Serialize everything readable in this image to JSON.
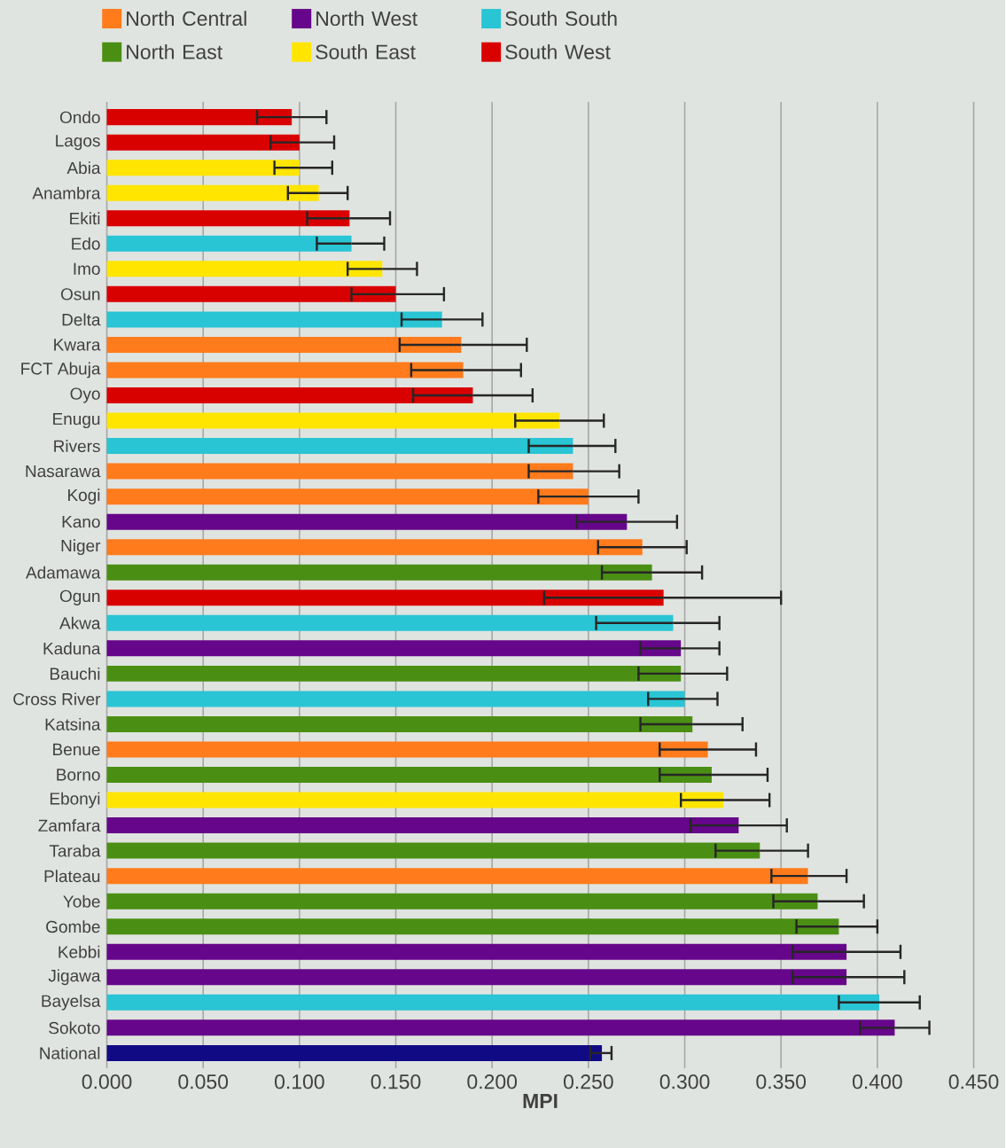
{
  "chart_data": {
    "type": "bar",
    "orientation": "horizontal",
    "stacked": true,
    "categories": [
      "Ondo",
      "Lagos",
      "Abia",
      "Anambra",
      "Ekiti",
      "Edo",
      "Imo",
      "Osun",
      "Delta",
      "Kwara",
      "FCT Abuja",
      "Oyo",
      "Enugu",
      "Rivers",
      "Nasarawa",
      "Kogi",
      "Kano",
      "Niger",
      "Adamawa",
      "Ogun",
      "Akwa",
      "Kaduna",
      "Bauchi",
      "Cross River",
      "Katsina",
      "Benue",
      "Borno",
      "Ebonyi",
      "Zamfara",
      "Taraba",
      "Plateau",
      "Yobe",
      "Gombe",
      "Kebbi",
      "Jigawa",
      "Bayelsa",
      "Sokoto",
      "National"
    ],
    "series": [
      {
        "name": "North Central",
        "color": "#ff7b1c",
        "values": [
          null,
          null,
          null,
          null,
          null,
          null,
          null,
          null,
          null,
          0.184,
          0.185,
          null,
          null,
          null,
          0.242,
          0.25,
          null,
          0.278,
          null,
          null,
          null,
          null,
          null,
          null,
          null,
          0.312,
          null,
          null,
          null,
          null,
          0.364,
          null,
          null,
          null,
          null,
          null,
          null,
          null
        ],
        "errors": [
          null,
          null,
          null,
          null,
          null,
          null,
          null,
          null,
          null,
          [
            0.152,
            0.218
          ],
          [
            0.158,
            0.215
          ],
          null,
          null,
          null,
          [
            0.219,
            0.266
          ],
          [
            0.224,
            0.276
          ],
          null,
          [
            0.255,
            0.301
          ],
          null,
          null,
          null,
          null,
          null,
          null,
          null,
          [
            0.287,
            0.337
          ],
          null,
          null,
          null,
          null,
          [
            0.345,
            0.384
          ],
          null,
          null,
          null,
          null,
          null,
          null,
          null
        ]
      },
      {
        "name": "North West",
        "color": "#66068a",
        "values": [
          null,
          null,
          null,
          null,
          null,
          null,
          null,
          null,
          null,
          null,
          null,
          null,
          null,
          null,
          null,
          null,
          0.27,
          null,
          null,
          null,
          null,
          0.298,
          null,
          null,
          null,
          null,
          null,
          null,
          0.328,
          null,
          null,
          null,
          null,
          0.384,
          0.384,
          null,
          0.409,
          null
        ],
        "errors": [
          null,
          null,
          null,
          null,
          null,
          null,
          null,
          null,
          null,
          null,
          null,
          null,
          null,
          null,
          null,
          null,
          [
            0.244,
            0.296
          ],
          null,
          null,
          null,
          null,
          [
            0.277,
            0.318
          ],
          null,
          null,
          null,
          null,
          null,
          null,
          [
            0.303,
            0.353
          ],
          null,
          null,
          null,
          null,
          [
            0.356,
            0.412
          ],
          [
            0.356,
            0.414
          ],
          null,
          [
            0.391,
            0.427
          ],
          null
        ]
      },
      {
        "name": "South South",
        "color": "#29c5d4",
        "values": [
          null,
          null,
          null,
          null,
          null,
          0.127,
          null,
          null,
          0.174,
          null,
          null,
          null,
          null,
          0.242,
          null,
          null,
          null,
          null,
          null,
          null,
          0.294,
          null,
          null,
          0.3,
          null,
          null,
          null,
          null,
          null,
          null,
          null,
          null,
          null,
          null,
          null,
          0.401,
          null,
          null
        ],
        "errors": [
          null,
          null,
          null,
          null,
          null,
          [
            0.109,
            0.144
          ],
          null,
          null,
          [
            0.153,
            0.195
          ],
          null,
          null,
          null,
          null,
          [
            0.219,
            0.264
          ],
          null,
          null,
          null,
          null,
          null,
          null,
          [
            0.254,
            0.318
          ],
          null,
          null,
          [
            0.281,
            0.317
          ],
          null,
          null,
          null,
          null,
          null,
          null,
          null,
          null,
          null,
          null,
          null,
          [
            0.38,
            0.422
          ],
          null,
          null
        ]
      },
      {
        "name": "North East",
        "color": "#4a8f14",
        "values": [
          null,
          null,
          null,
          null,
          null,
          null,
          null,
          null,
          null,
          null,
          null,
          null,
          null,
          null,
          null,
          null,
          null,
          null,
          0.283,
          null,
          null,
          null,
          0.298,
          null,
          0.304,
          null,
          0.314,
          null,
          null,
          0.339,
          null,
          0.369,
          0.38,
          null,
          null,
          null,
          null,
          null
        ],
        "errors": [
          null,
          null,
          null,
          null,
          null,
          null,
          null,
          null,
          null,
          null,
          null,
          null,
          null,
          null,
          null,
          null,
          null,
          null,
          [
            0.257,
            0.309
          ],
          null,
          null,
          null,
          [
            0.276,
            0.322
          ],
          null,
          [
            0.277,
            0.33
          ],
          null,
          [
            0.287,
            0.343
          ],
          null,
          null,
          [
            0.316,
            0.364
          ],
          null,
          [
            0.346,
            0.393
          ],
          [
            0.358,
            0.4
          ],
          null,
          null,
          null,
          null,
          null
        ]
      },
      {
        "name": "South East",
        "color": "#ffe500",
        "values": [
          null,
          null,
          0.1,
          0.11,
          null,
          null,
          0.143,
          null,
          null,
          null,
          null,
          null,
          0.235,
          null,
          null,
          null,
          null,
          null,
          null,
          null,
          null,
          null,
          null,
          null,
          null,
          null,
          null,
          0.32,
          null,
          null,
          null,
          null,
          null,
          null,
          null,
          null,
          null,
          null
        ],
        "errors": [
          null,
          null,
          [
            0.087,
            0.117
          ],
          [
            0.094,
            0.125
          ],
          null,
          null,
          [
            0.125,
            0.161
          ],
          null,
          null,
          null,
          null,
          null,
          [
            0.212,
            0.258
          ],
          null,
          null,
          null,
          null,
          null,
          null,
          null,
          null,
          null,
          null,
          null,
          null,
          null,
          null,
          [
            0.298,
            0.344
          ],
          null,
          null,
          null,
          null,
          null,
          null,
          null,
          null,
          null,
          null
        ]
      },
      {
        "name": "South West",
        "color": "#d90000",
        "values": [
          0.096,
          0.1,
          null,
          null,
          0.126,
          null,
          null,
          0.15,
          null,
          null,
          null,
          0.19,
          null,
          null,
          null,
          null,
          null,
          null,
          null,
          0.289,
          null,
          null,
          null,
          null,
          null,
          null,
          null,
          null,
          null,
          null,
          null,
          null,
          null,
          null,
          null,
          null,
          null,
          null
        ],
        "errors": [
          [
            0.078,
            0.114
          ],
          [
            0.085,
            0.118
          ],
          null,
          null,
          [
            0.104,
            0.147
          ],
          null,
          null,
          [
            0.127,
            0.175
          ],
          null,
          null,
          null,
          [
            0.159,
            0.221
          ],
          null,
          null,
          null,
          null,
          null,
          null,
          null,
          [
            0.227,
            0.35
          ],
          null,
          null,
          null,
          null,
          null,
          null,
          null,
          null,
          null,
          null,
          null,
          null,
          null,
          null,
          null,
          null,
          null,
          null
        ]
      },
      {
        "color": "#100a85",
        "values": [
          null,
          null,
          null,
          null,
          null,
          null,
          null,
          null,
          null,
          null,
          null,
          null,
          null,
          null,
          null,
          null,
          null,
          null,
          null,
          null,
          null,
          null,
          null,
          null,
          null,
          null,
          null,
          null,
          null,
          null,
          null,
          null,
          null,
          null,
          null,
          null,
          null,
          0.257
        ],
        "errors": [
          null,
          null,
          null,
          null,
          null,
          null,
          null,
          null,
          null,
          null,
          null,
          null,
          null,
          null,
          null,
          null,
          null,
          null,
          null,
          null,
          null,
          null,
          null,
          null,
          null,
          null,
          null,
          null,
          null,
          null,
          null,
          null,
          null,
          null,
          null,
          null,
          null,
          [
            0.251,
            0.262
          ]
        ]
      }
    ],
    "xlabel": "**MPI**",
    "xlim": [
      0,
      0.45
    ],
    "xticks": [
      {
        "value": 0,
        "label": "0.000"
      },
      {
        "value": 0.05,
        "label": "0.050"
      },
      {
        "value": 0.1,
        "label": "0.100"
      },
      {
        "value": 0.15,
        "label": "0.150"
      },
      {
        "value": 0.2,
        "label": "0.200"
      },
      {
        "value": 0.25,
        "label": "0.250"
      },
      {
        "value": 0.3,
        "label": "0.300"
      },
      {
        "value": 0.35,
        "label": "0.350"
      },
      {
        "value": 0.4,
        "label": "0.400"
      },
      {
        "value": 0.45,
        "label": "0.450"
      }
    ],
    "grid": "x",
    "legend": "top"
  }
}
